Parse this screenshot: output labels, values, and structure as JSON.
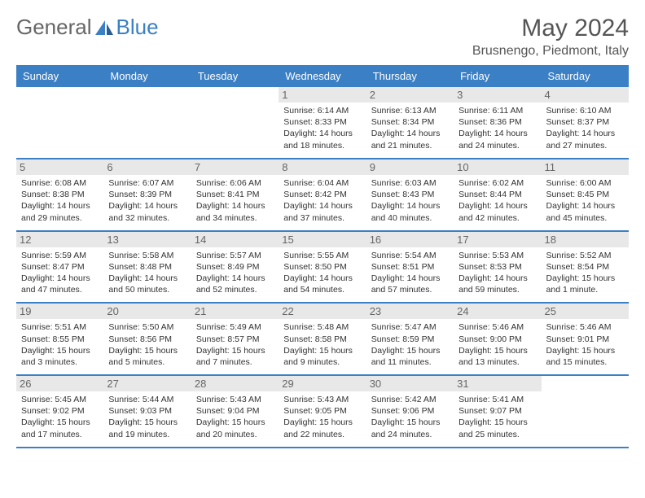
{
  "brand": {
    "part1": "General",
    "part2": "Blue"
  },
  "header": {
    "month": "May 2024",
    "location": "Brusnengo, Piedmont, Italy"
  },
  "colors": {
    "accent": "#3b7fc4",
    "daybg": "#e8e8e8",
    "text": "#333",
    "muted": "#555"
  },
  "weekdays": [
    "Sunday",
    "Monday",
    "Tuesday",
    "Wednesday",
    "Thursday",
    "Friday",
    "Saturday"
  ],
  "firstDayOffset": 3,
  "days": [
    {
      "n": 1,
      "sr": "6:14 AM",
      "ss": "8:33 PM",
      "dl": "14 hours and 18 minutes."
    },
    {
      "n": 2,
      "sr": "6:13 AM",
      "ss": "8:34 PM",
      "dl": "14 hours and 21 minutes."
    },
    {
      "n": 3,
      "sr": "6:11 AM",
      "ss": "8:36 PM",
      "dl": "14 hours and 24 minutes."
    },
    {
      "n": 4,
      "sr": "6:10 AM",
      "ss": "8:37 PM",
      "dl": "14 hours and 27 minutes."
    },
    {
      "n": 5,
      "sr": "6:08 AM",
      "ss": "8:38 PM",
      "dl": "14 hours and 29 minutes."
    },
    {
      "n": 6,
      "sr": "6:07 AM",
      "ss": "8:39 PM",
      "dl": "14 hours and 32 minutes."
    },
    {
      "n": 7,
      "sr": "6:06 AM",
      "ss": "8:41 PM",
      "dl": "14 hours and 34 minutes."
    },
    {
      "n": 8,
      "sr": "6:04 AM",
      "ss": "8:42 PM",
      "dl": "14 hours and 37 minutes."
    },
    {
      "n": 9,
      "sr": "6:03 AM",
      "ss": "8:43 PM",
      "dl": "14 hours and 40 minutes."
    },
    {
      "n": 10,
      "sr": "6:02 AM",
      "ss": "8:44 PM",
      "dl": "14 hours and 42 minutes."
    },
    {
      "n": 11,
      "sr": "6:00 AM",
      "ss": "8:45 PM",
      "dl": "14 hours and 45 minutes."
    },
    {
      "n": 12,
      "sr": "5:59 AM",
      "ss": "8:47 PM",
      "dl": "14 hours and 47 minutes."
    },
    {
      "n": 13,
      "sr": "5:58 AM",
      "ss": "8:48 PM",
      "dl": "14 hours and 50 minutes."
    },
    {
      "n": 14,
      "sr": "5:57 AM",
      "ss": "8:49 PM",
      "dl": "14 hours and 52 minutes."
    },
    {
      "n": 15,
      "sr": "5:55 AM",
      "ss": "8:50 PM",
      "dl": "14 hours and 54 minutes."
    },
    {
      "n": 16,
      "sr": "5:54 AM",
      "ss": "8:51 PM",
      "dl": "14 hours and 57 minutes."
    },
    {
      "n": 17,
      "sr": "5:53 AM",
      "ss": "8:53 PM",
      "dl": "14 hours and 59 minutes."
    },
    {
      "n": 18,
      "sr": "5:52 AM",
      "ss": "8:54 PM",
      "dl": "15 hours and 1 minute."
    },
    {
      "n": 19,
      "sr": "5:51 AM",
      "ss": "8:55 PM",
      "dl": "15 hours and 3 minutes."
    },
    {
      "n": 20,
      "sr": "5:50 AM",
      "ss": "8:56 PM",
      "dl": "15 hours and 5 minutes."
    },
    {
      "n": 21,
      "sr": "5:49 AM",
      "ss": "8:57 PM",
      "dl": "15 hours and 7 minutes."
    },
    {
      "n": 22,
      "sr": "5:48 AM",
      "ss": "8:58 PM",
      "dl": "15 hours and 9 minutes."
    },
    {
      "n": 23,
      "sr": "5:47 AM",
      "ss": "8:59 PM",
      "dl": "15 hours and 11 minutes."
    },
    {
      "n": 24,
      "sr": "5:46 AM",
      "ss": "9:00 PM",
      "dl": "15 hours and 13 minutes."
    },
    {
      "n": 25,
      "sr": "5:46 AM",
      "ss": "9:01 PM",
      "dl": "15 hours and 15 minutes."
    },
    {
      "n": 26,
      "sr": "5:45 AM",
      "ss": "9:02 PM",
      "dl": "15 hours and 17 minutes."
    },
    {
      "n": 27,
      "sr": "5:44 AM",
      "ss": "9:03 PM",
      "dl": "15 hours and 19 minutes."
    },
    {
      "n": 28,
      "sr": "5:43 AM",
      "ss": "9:04 PM",
      "dl": "15 hours and 20 minutes."
    },
    {
      "n": 29,
      "sr": "5:43 AM",
      "ss": "9:05 PM",
      "dl": "15 hours and 22 minutes."
    },
    {
      "n": 30,
      "sr": "5:42 AM",
      "ss": "9:06 PM",
      "dl": "15 hours and 24 minutes."
    },
    {
      "n": 31,
      "sr": "5:41 AM",
      "ss": "9:07 PM",
      "dl": "15 hours and 25 minutes."
    }
  ],
  "labels": {
    "sunrise": "Sunrise:",
    "sunset": "Sunset:",
    "daylight": "Daylight:"
  }
}
